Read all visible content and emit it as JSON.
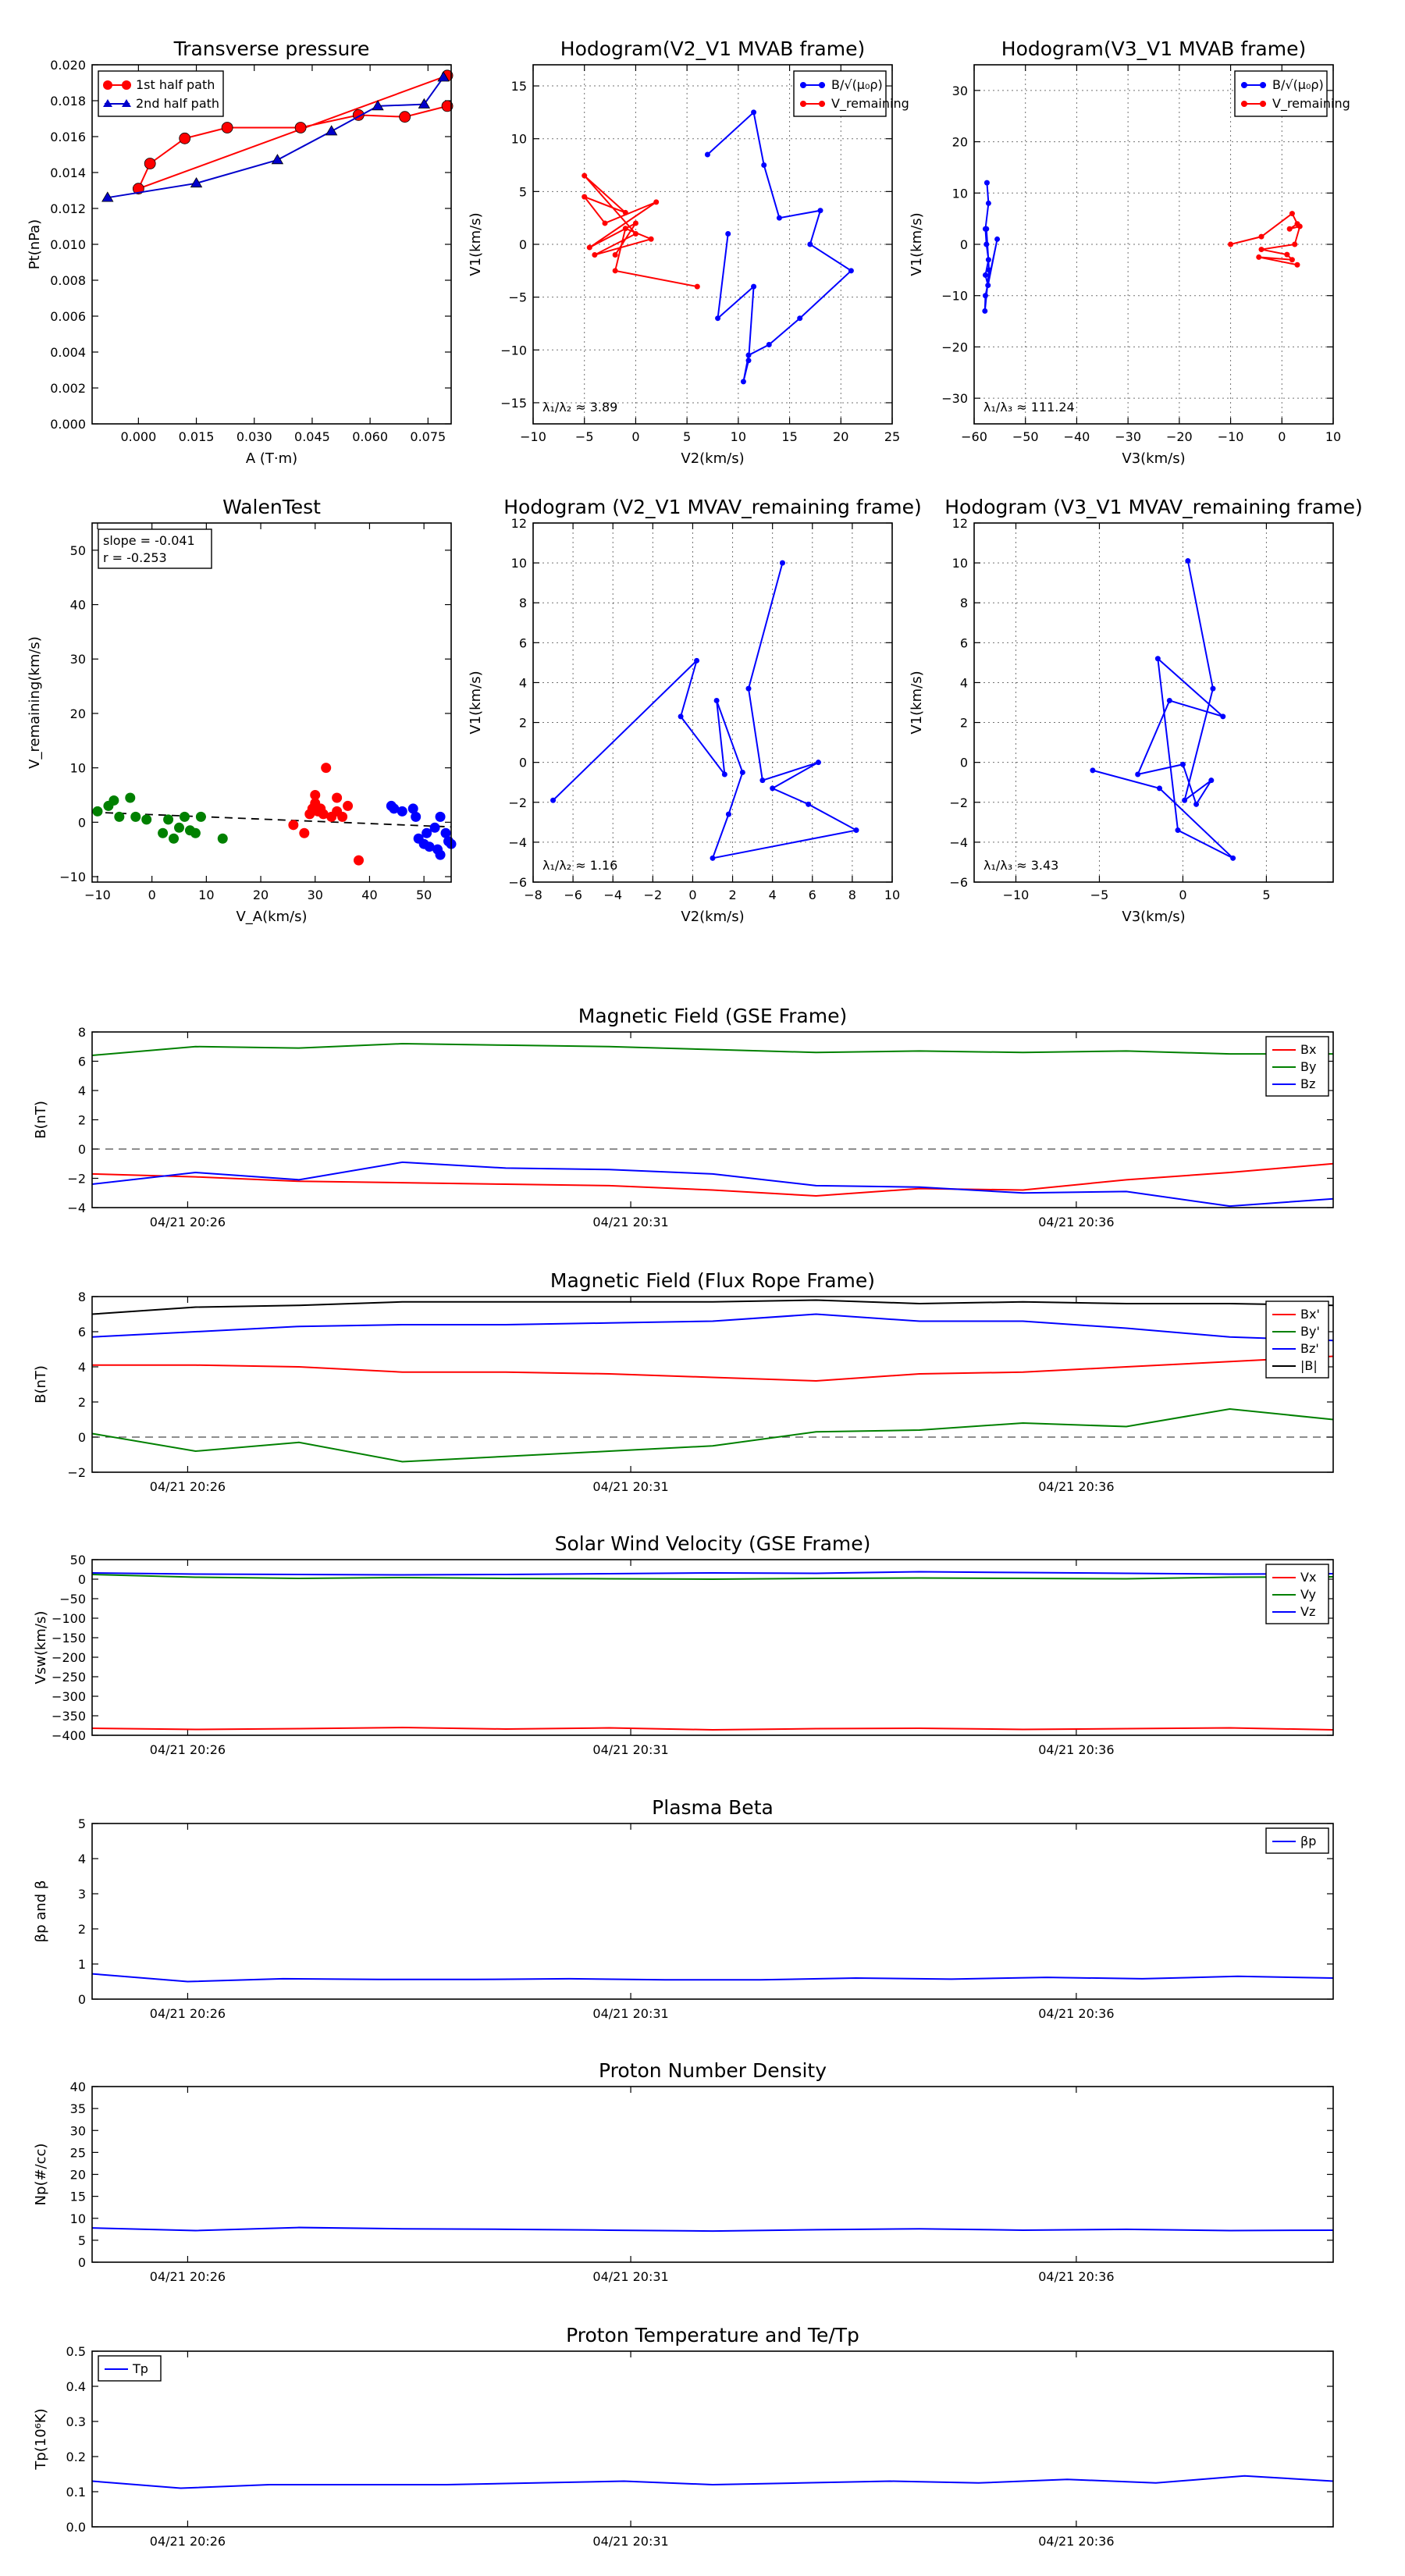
{
  "chart_data": [
    {
      "id": "tp",
      "type": "line",
      "title": "Transverse pressure",
      "xlabel": "A (T·m)",
      "ylabel": "Pt(nPa)",
      "xlim": [
        -0.012,
        0.081
      ],
      "ylim": [
        0,
        0.02
      ],
      "xticks": [
        0,
        0.015,
        0.03,
        0.045,
        0.06,
        0.075
      ],
      "xticklabels": [
        "0.000",
        "0.015",
        "0.030",
        "0.045",
        "0.060",
        "0.075"
      ],
      "yticks": [
        0,
        0.002,
        0.004,
        0.006,
        0.008,
        0.01,
        0.012,
        0.014,
        0.016,
        0.018,
        0.02
      ],
      "yticklabels": [
        "0.000",
        "0.002",
        "0.004",
        "0.006",
        "0.008",
        "0.010",
        "0.012",
        "0.014",
        "0.016",
        "0.018",
        "0.020"
      ],
      "grid": false,
      "legend": "top-left",
      "series": [
        {
          "name": "1st half path",
          "color": "#ff0000",
          "marker": "circle",
          "x": [
            0.08,
            0.069,
            0.057,
            0.042,
            0.023,
            0.012,
            0.003,
            0.0,
            0.08
          ],
          "y": [
            0.0177,
            0.0171,
            0.0172,
            0.0165,
            0.0165,
            0.0159,
            0.0145,
            0.0131,
            0.0194
          ]
        },
        {
          "name": "2nd half path",
          "color": "#0000cc",
          "marker": "triangle",
          "x": [
            -0.008,
            0.015,
            0.036,
            0.05,
            0.062,
            0.074,
            0.079
          ],
          "y": [
            0.0126,
            0.0134,
            0.0147,
            0.0163,
            0.0177,
            0.0178,
            0.0193
          ]
        }
      ]
    },
    {
      "id": "h1",
      "type": "line",
      "title": "Hodogram(V2_V1 MVAB frame)",
      "xlabel": "V2(km/s)",
      "ylabel": "V1(km/s)",
      "xlim": [
        -10,
        25
      ],
      "ylim": [
        -17,
        17
      ],
      "xticks": [
        -10,
        -5,
        0,
        5,
        10,
        15,
        20,
        25
      ],
      "xticklabels": [
        "−10",
        "−5",
        "0",
        "5",
        "10",
        "15",
        "20",
        "25"
      ],
      "yticks": [
        -15,
        -10,
        -5,
        0,
        5,
        10,
        15
      ],
      "yticklabels": [
        "−15",
        "−10",
        "−5",
        "0",
        "5",
        "10",
        "15"
      ],
      "grid": true,
      "legend": "top-right",
      "annotation": "λ₁/λ₂ ≈ 3.89",
      "series": [
        {
          "name": "B/√(μ₀ρ)",
          "color": "#0000ff",
          "x": [
            7,
            11.5,
            12.5,
            14,
            18,
            17,
            21,
            16,
            13,
            11,
            10.5,
            11,
            11.5,
            8,
            9
          ],
          "y": [
            8.5,
            12.5,
            7.5,
            2.5,
            3.2,
            0,
            -2.5,
            -7,
            -9.5,
            -10.5,
            -13,
            -11,
            -4,
            -7,
            1
          ]
        },
        {
          "name": "V_remaining",
          "color": "#ff0000",
          "x": [
            6,
            -2,
            -1,
            1.5,
            -4,
            0,
            -5,
            -1,
            -5,
            -3,
            2,
            -4.5,
            0,
            -2
          ],
          "y": [
            -4,
            -2.5,
            1.5,
            0.5,
            -1,
            1,
            6.5,
            3,
            4.5,
            2,
            4,
            -0.3,
            2,
            -1
          ]
        }
      ]
    },
    {
      "id": "h2",
      "type": "line",
      "title": "Hodogram(V3_V1 MVAB frame)",
      "xlabel": "V3(km/s)",
      "ylabel": "V1(km/s)",
      "xlim": [
        -60,
        10
      ],
      "ylim": [
        -35,
        35
      ],
      "xticks": [
        -60,
        -50,
        -40,
        -30,
        -20,
        -10,
        0,
        10
      ],
      "xticklabels": [
        "−60",
        "−50",
        "−40",
        "−30",
        "−20",
        "−10",
        "0",
        "10"
      ],
      "yticks": [
        -30,
        -20,
        -10,
        0,
        10,
        20,
        30
      ],
      "yticklabels": [
        "−30",
        "−20",
        "−10",
        "0",
        "10",
        "20",
        "30"
      ],
      "grid": true,
      "legend": "top-right",
      "annotation": "λ₁/λ₃ ≈ 111.24",
      "series": [
        {
          "name": "B/√(μ₀ρ)",
          "color": "#0000ff",
          "x": [
            -57.5,
            -57.2,
            -57.8,
            -57.6,
            -57.2,
            -57.8,
            -57.3,
            -55.5,
            -57.8,
            -57.9,
            -57.1,
            -57.6
          ],
          "y": [
            12,
            8,
            3,
            0,
            -3,
            -6,
            -8,
            1,
            -10,
            -13,
            -5,
            3
          ]
        },
        {
          "name": "V_remaining",
          "color": "#ff0000",
          "x": [
            -10,
            -4,
            2,
            3,
            1.5,
            3.5,
            2.5,
            -4,
            1,
            2,
            -4.5,
            3
          ],
          "y": [
            0,
            1.5,
            6,
            4,
            3,
            3.5,
            0,
            -1,
            -2,
            -3,
            -2.5,
            -4
          ]
        }
      ]
    },
    {
      "id": "walen",
      "type": "scatter",
      "title": "WalenTest",
      "xlabel": "V_A(km/s)",
      "ylabel": "V_remaining(km/s)",
      "xlim": [
        -11,
        55
      ],
      "ylim": [
        -11,
        55
      ],
      "xticks": [
        -10,
        0,
        10,
        20,
        30,
        40,
        50
      ],
      "xticklabels": [
        "−10",
        "0",
        "10",
        "20",
        "30",
        "40",
        "50"
      ],
      "yticks": [
        -10,
        0,
        10,
        20,
        30,
        40,
        50
      ],
      "yticklabels": [
        "−10",
        "0",
        "10",
        "20",
        "30",
        "40",
        "50"
      ],
      "grid": false,
      "annotation": [
        "slope = -0.041",
        "r = -0.253"
      ],
      "fit": {
        "slope": -0.041,
        "intercept": 1.4
      },
      "series": [
        {
          "name": "green",
          "color": "#008000",
          "x": [
            -10,
            -8,
            -7,
            -6,
            -4,
            -3,
            -1,
            2,
            3,
            4,
            5,
            6,
            7,
            8,
            9,
            13
          ],
          "y": [
            2,
            3,
            4,
            1,
            4.5,
            1,
            0.5,
            -2,
            0.5,
            -3,
            -1,
            1,
            -1.5,
            -2,
            1,
            -3
          ]
        },
        {
          "name": "red",
          "color": "#ff0000",
          "x": [
            26,
            28,
            29,
            29.5,
            30,
            30,
            30.5,
            31,
            31.5,
            32,
            33,
            34,
            34,
            35,
            36,
            38
          ],
          "y": [
            -0.5,
            -2,
            1.5,
            2.5,
            3.5,
            5,
            2,
            2.5,
            1.5,
            10,
            1,
            4.5,
            2,
            1,
            3,
            -7
          ]
        },
        {
          "name": "blue",
          "color": "#0000ff",
          "x": [
            44,
            44.5,
            46,
            48,
            48.5,
            49,
            50,
            50.5,
            51,
            52,
            52.5,
            53,
            53,
            54,
            54.5,
            55
          ],
          "y": [
            3,
            2.5,
            2,
            2.5,
            1,
            -3,
            -4,
            -2,
            -4.5,
            -1,
            -5,
            -6,
            1,
            -2,
            -3.5,
            -4
          ]
        }
      ]
    },
    {
      "id": "h3",
      "type": "line",
      "title": "Hodogram (V2_V1 MVAV_remaining frame)",
      "xlabel": "V2(km/s)",
      "ylabel": "V1(km/s)",
      "xlim": [
        -8,
        10
      ],
      "ylim": [
        -6,
        12
      ],
      "xticks": [
        -8,
        -6,
        -4,
        -2,
        0,
        2,
        4,
        6,
        8,
        10
      ],
      "xticklabels": [
        "−8",
        "−6",
        "−4",
        "−2",
        "0",
        "2",
        "4",
        "6",
        "8",
        "10"
      ],
      "yticks": [
        -6,
        -4,
        -2,
        0,
        2,
        4,
        6,
        8,
        10,
        12
      ],
      "yticklabels": [
        "−6",
        "−4",
        "−2",
        "0",
        "2",
        "4",
        "6",
        "8",
        "10",
        "12"
      ],
      "grid": true,
      "annotation": "λ₁/λ₂ ≈ 1.16",
      "series": [
        {
          "name": "hodogram",
          "color": "#0000ff",
          "x": [
            4.5,
            2.8,
            3.5,
            6.3,
            4,
            5.8,
            8.2,
            1,
            1.8,
            2.5,
            1.2,
            1.6,
            -0.6,
            0.2,
            -7
          ],
          "y": [
            10,
            3.7,
            -0.9,
            0,
            -1.3,
            -2.1,
            -3.4,
            -4.8,
            -2.6,
            -0.5,
            3.1,
            -0.6,
            2.3,
            5.1,
            -1.9
          ]
        }
      ]
    },
    {
      "id": "h4",
      "type": "line",
      "title": "Hodogram (V3_V1 MVAV_remaining frame)",
      "xlabel": "V3(km/s)",
      "ylabel": "V1(km/s)",
      "xlim": [
        -12.5,
        9
      ],
      "ylim": [
        -6,
        12
      ],
      "xticks": [
        -10,
        -5,
        0,
        5
      ],
      "xticklabels": [
        "−10",
        "−5",
        "0",
        "5"
      ],
      "yticks": [
        -6,
        -4,
        -2,
        0,
        2,
        4,
        6,
        8,
        10,
        12
      ],
      "yticklabels": [
        "−6",
        "−4",
        "−2",
        "0",
        "2",
        "4",
        "6",
        "8",
        "10",
        "12"
      ],
      "grid": true,
      "annotation": "λ₁/λ₃ ≈ 3.43",
      "series": [
        {
          "name": "hodogram",
          "color": "#0000ff",
          "x": [
            0.3,
            1.8,
            0.1,
            1.7,
            0.8,
            0,
            -2.7,
            -0.8,
            2.4,
            -1.5,
            -0.3,
            3.0,
            -1.4,
            -5.4
          ],
          "y": [
            10.1,
            3.7,
            -1.9,
            -0.9,
            -2.1,
            -0.1,
            -0.6,
            3.1,
            2.3,
            5.2,
            -3.4,
            -4.8,
            -1.3,
            -0.4
          ]
        }
      ]
    },
    {
      "id": "mag_gse",
      "type": "line",
      "title": "Magnetic Field (GSE Frame)",
      "ylabel": "B(nT)",
      "ylim": [
        -4,
        8
      ],
      "yticks": [
        -4,
        -2,
        0,
        2,
        4,
        6,
        8
      ],
      "yticklabels": [
        "−4",
        "−2",
        "0",
        "2",
        "4",
        "6",
        "8"
      ],
      "xticklabels": [
        "04/21 20:26",
        "04/21 20:31",
        "04/21 20:36"
      ],
      "zero_line": true,
      "legend": "top-right",
      "series": [
        {
          "name": "Bx",
          "color": "#ff0000",
          "values": [
            -1.7,
            -1.9,
            -2.2,
            -2.3,
            -2.4,
            -2.5,
            -2.8,
            -3.2,
            -2.7,
            -2.8,
            -2.1,
            -1.6,
            -1.0
          ]
        },
        {
          "name": "By",
          "color": "#008000",
          "values": [
            6.4,
            7.0,
            6.9,
            7.2,
            7.1,
            7.0,
            6.8,
            6.6,
            6.7,
            6.6,
            6.7,
            6.5,
            6.5
          ]
        },
        {
          "name": "Bz",
          "color": "#0000ff",
          "values": [
            -2.4,
            -1.6,
            -2.1,
            -0.9,
            -1.3,
            -1.4,
            -1.7,
            -2.5,
            -2.6,
            -3.0,
            -2.9,
            -3.9,
            -3.4
          ]
        }
      ]
    },
    {
      "id": "mag_fr",
      "type": "line",
      "title": "Magnetic Field (Flux Rope Frame)",
      "ylabel": "B(nT)",
      "ylim": [
        -2,
        8
      ],
      "yticks": [
        -2,
        0,
        2,
        4,
        6,
        8
      ],
      "yticklabels": [
        "−2",
        "0",
        "2",
        "4",
        "6",
        "8"
      ],
      "xticklabels": [
        "04/21 20:26",
        "04/21 20:31",
        "04/21 20:36"
      ],
      "zero_line": true,
      "legend": "top-right",
      "series": [
        {
          "name": "Bx'",
          "color": "#ff0000",
          "values": [
            4.1,
            4.1,
            4.0,
            3.7,
            3.7,
            3.6,
            3.4,
            3.2,
            3.6,
            3.7,
            4.0,
            4.3,
            4.6
          ]
        },
        {
          "name": "By'",
          "color": "#008000",
          "values": [
            0.2,
            -0.8,
            -0.3,
            -1.4,
            -1.1,
            -0.8,
            -0.5,
            0.3,
            0.4,
            0.8,
            0.6,
            1.6,
            1.0
          ]
        },
        {
          "name": "Bz'",
          "color": "#0000ff",
          "values": [
            5.7,
            6.0,
            6.3,
            6.4,
            6.4,
            6.5,
            6.6,
            7.0,
            6.6,
            6.6,
            6.2,
            5.7,
            5.5
          ]
        },
        {
          "name": "|B|",
          "color": "#000000",
          "values": [
            7.0,
            7.4,
            7.5,
            7.7,
            7.7,
            7.7,
            7.7,
            7.8,
            7.6,
            7.7,
            7.6,
            7.6,
            7.5
          ]
        }
      ]
    },
    {
      "id": "vsw",
      "type": "line",
      "title": "Solar Wind Velocity (GSE Frame)",
      "ylabel": "Vsw(km/s)",
      "ylim": [
        -400,
        50
      ],
      "yticks": [
        -400,
        -350,
        -300,
        -250,
        -200,
        -150,
        -100,
        -50,
        0,
        50
      ],
      "yticklabels": [
        "−400",
        "−350",
        "−300",
        "−250",
        "−200",
        "−150",
        "−100",
        "−50",
        "0",
        "50"
      ],
      "xticklabels": [
        "04/21 20:26",
        "04/21 20:31",
        "04/21 20:36"
      ],
      "zero_line": false,
      "legend": "top-right",
      "series": [
        {
          "name": "Vx",
          "color": "#ff0000",
          "values": [
            -382,
            -385,
            -383,
            -380,
            -384,
            -381,
            -386,
            -383,
            -382,
            -385,
            -383,
            -381,
            -386
          ]
        },
        {
          "name": "Vy",
          "color": "#008000",
          "values": [
            12,
            5,
            2,
            4,
            2,
            1,
            0,
            2,
            3,
            2,
            1,
            5,
            6
          ]
        },
        {
          "name": "Vz",
          "color": "#0000ff",
          "values": [
            16,
            13,
            12,
            11,
            12,
            14,
            16,
            15,
            19,
            17,
            15,
            13,
            14
          ]
        }
      ]
    },
    {
      "id": "beta",
      "type": "line",
      "title": "Plasma Beta",
      "ylabel": "βp and β",
      "ylim": [
        0,
        5
      ],
      "yticks": [
        0,
        1,
        2,
        3,
        4,
        5
      ],
      "yticklabels": [
        "0",
        "1",
        "2",
        "3",
        "4",
        "5"
      ],
      "xticklabels": [
        "04/21 20:26",
        "04/21 20:31",
        "04/21 20:36"
      ],
      "zero_line": false,
      "legend": "top-right",
      "series": [
        {
          "name": "βp",
          "color": "#0000ff",
          "values": [
            0.72,
            0.5,
            0.58,
            0.56,
            0.56,
            0.58,
            0.55,
            0.55,
            0.6,
            0.57,
            0.62,
            0.58,
            0.65,
            0.6
          ]
        }
      ]
    },
    {
      "id": "np",
      "type": "line",
      "title": "Proton Number Density",
      "ylabel": "Np(#/cc)",
      "ylim": [
        0,
        40
      ],
      "yticks": [
        0,
        5,
        10,
        15,
        20,
        25,
        30,
        35,
        40
      ],
      "yticklabels": [
        "0",
        "5",
        "10",
        "15",
        "20",
        "25",
        "30",
        "35",
        "40"
      ],
      "xticklabels": [
        "04/21 20:26",
        "04/21 20:31",
        "04/21 20:36"
      ],
      "zero_line": false,
      "legend": "none",
      "series": [
        {
          "name": "Np",
          "color": "#0000ff",
          "values": [
            7.8,
            7.2,
            7.9,
            7.6,
            7.5,
            7.3,
            7.1,
            7.4,
            7.6,
            7.3,
            7.5,
            7.2,
            7.3
          ]
        }
      ]
    },
    {
      "id": "tp_temp",
      "type": "line",
      "title": "Proton Temperature and Te/Tp",
      "ylabel": "Tp(10⁶K)",
      "ylim": [
        0,
        0.5
      ],
      "yticks": [
        0,
        0.1,
        0.2,
        0.3,
        0.4,
        0.5
      ],
      "yticklabels": [
        "0.0",
        "0.1",
        "0.2",
        "0.3",
        "0.4",
        "0.5"
      ],
      "xticklabels": [
        "04/21 20:26",
        "04/21 20:31",
        "04/21 20:36"
      ],
      "zero_line": false,
      "legend": "top-left",
      "series": [
        {
          "name": "Tp",
          "color": "#0000ff",
          "values": [
            0.13,
            0.11,
            0.12,
            0.12,
            0.12,
            0.125,
            0.13,
            0.12,
            0.125,
            0.13,
            0.125,
            0.135,
            0.125,
            0.145,
            0.13
          ]
        }
      ]
    }
  ]
}
